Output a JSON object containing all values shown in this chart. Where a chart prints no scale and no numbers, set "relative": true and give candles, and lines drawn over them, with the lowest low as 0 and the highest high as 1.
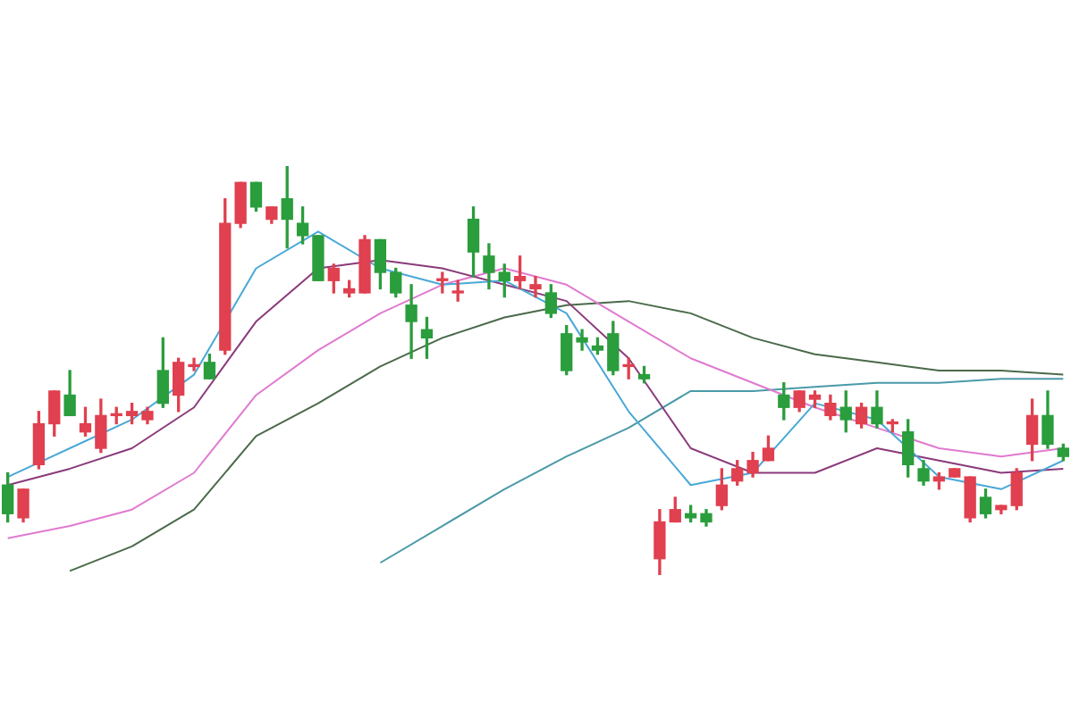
{
  "chart_data": {
    "type": "candlestick",
    "relative": true,
    "categories": [
      null,
      null,
      null,
      null,
      null,
      null,
      null,
      null,
      null,
      null,
      null,
      null,
      null,
      null,
      null,
      null,
      null,
      null,
      null,
      null,
      null,
      null,
      null,
      null,
      null,
      null,
      null,
      null,
      null,
      null,
      null,
      null,
      null,
      null,
      null,
      null,
      null,
      null,
      null,
      null,
      null,
      null,
      null,
      null,
      null,
      null,
      null,
      null,
      null,
      null,
      null,
      null,
      null,
      null,
      null,
      null,
      null,
      null,
      null,
      null,
      null,
      null,
      null,
      null,
      null,
      null,
      null,
      null,
      null
    ],
    "ohlc": [
      [
        0.22,
        0.25,
        0.13,
        0.15
      ],
      [
        0.14,
        0.21,
        0.13,
        0.21
      ],
      [
        0.27,
        0.4,
        0.26,
        0.37
      ],
      [
        0.37,
        0.45,
        0.34,
        0.45
      ],
      [
        0.44,
        0.5,
        0.39,
        0.39
      ],
      [
        0.35,
        0.41,
        0.34,
        0.37
      ],
      [
        0.31,
        0.43,
        0.3,
        0.39
      ],
      [
        0.39,
        0.41,
        0.37,
        0.39
      ],
      [
        0.39,
        0.42,
        0.37,
        0.4
      ],
      [
        0.38,
        0.41,
        0.37,
        0.4
      ],
      [
        0.5,
        0.58,
        0.41,
        0.42
      ],
      [
        0.44,
        0.53,
        0.4,
        0.52
      ],
      [
        0.51,
        0.53,
        0.5,
        0.51
      ],
      [
        0.52,
        0.54,
        0.48,
        0.48
      ],
      [
        0.55,
        0.92,
        0.54,
        0.86
      ],
      [
        0.86,
        0.96,
        0.85,
        0.96
      ],
      [
        0.96,
        0.96,
        0.89,
        0.9
      ],
      [
        0.87,
        0.9,
        0.86,
        0.9
      ],
      [
        0.92,
        1,
        0.8,
        0.87
      ],
      [
        0.86,
        0.9,
        0.81,
        0.83
      ],
      [
        0.83,
        0.83,
        0.72,
        0.72
      ],
      [
        0.72,
        0.76,
        0.69,
        0.75
      ],
      [
        0.69,
        0.72,
        0.68,
        0.7
      ],
      [
        0.69,
        0.83,
        0.69,
        0.82
      ],
      [
        0.82,
        0.82,
        0.7,
        0.74
      ],
      [
        0.74,
        0.75,
        0.68,
        0.69
      ],
      [
        0.66,
        0.71,
        0.53,
        0.62
      ],
      [
        0.6,
        0.63,
        0.53,
        0.58
      ],
      [
        0.72,
        0.74,
        0.69,
        0.72
      ],
      [
        0.69,
        0.72,
        0.67,
        0.69
      ],
      [
        0.87,
        0.9,
        0.73,
        0.79
      ],
      [
        0.78,
        0.81,
        0.7,
        0.74
      ],
      [
        0.74,
        0.76,
        0.68,
        0.72
      ],
      [
        0.72,
        0.78,
        0.7,
        0.73
      ],
      [
        0.7,
        0.73,
        0.68,
        0.71
      ],
      [
        0.69,
        0.71,
        0.63,
        0.64
      ],
      [
        0.59,
        0.61,
        0.49,
        0.5
      ],
      [
        0.58,
        0.6,
        0.55,
        0.57
      ],
      [
        0.56,
        0.58,
        0.54,
        0.55
      ],
      [
        0.59,
        0.62,
        0.49,
        0.5
      ],
      [
        0.51,
        0.53,
        0.48,
        0.51
      ],
      [
        0.49,
        0.51,
        0.47,
        0.48
      ],
      [
        0.04,
        0.16,
        0,
        0.13
      ],
      [
        0.13,
        0.19,
        0.13,
        0.16
      ],
      [
        0.15,
        0.17,
        0.13,
        0.14
      ],
      [
        0.15,
        0.16,
        0.12,
        0.13
      ],
      [
        0.17,
        0.26,
        0.16,
        0.22
      ],
      [
        0.23,
        0.28,
        0.22,
        0.26
      ],
      [
        0.25,
        0.3,
        0.24,
        0.28
      ],
      [
        0.28,
        0.34,
        0.28,
        0.31
      ],
      [
        0.44,
        0.47,
        0.38,
        0.41
      ],
      [
        0.41,
        0.45,
        0.4,
        0.45
      ],
      [
        0.43,
        0.45,
        0.41,
        0.44
      ],
      [
        0.39,
        0.44,
        0.38,
        0.42
      ],
      [
        0.41,
        0.45,
        0.35,
        0.38
      ],
      [
        0.37,
        0.42,
        0.36,
        0.41
      ],
      [
        0.41,
        0.45,
        0.36,
        0.37
      ],
      [
        0.37,
        0.38,
        0.35,
        0.37
      ],
      [
        0.35,
        0.38,
        0.24,
        0.27
      ],
      [
        0.26,
        0.28,
        0.22,
        0.23
      ],
      [
        0.23,
        0.25,
        0.21,
        0.24
      ],
      [
        0.24,
        0.26,
        0.24,
        0.26
      ],
      [
        0.14,
        0.24,
        0.13,
        0.24
      ],
      [
        0.19,
        0.21,
        0.14,
        0.15
      ],
      [
        0.16,
        0.17,
        0.15,
        0.17
      ],
      [
        0.17,
        0.26,
        0.16,
        0.25
      ],
      [
        0.32,
        0.43,
        0.28,
        0.39
      ],
      [
        0.39,
        0.45,
        0.31,
        0.32
      ],
      [
        0.31,
        0.32,
        0.28,
        0.29
      ]
    ],
    "colors": [
      "#2a9d3c",
      "#e0404f",
      "#e0404f",
      "#e0404f",
      "#2a9d3c",
      "#e0404f",
      "#e0404f",
      "#e0404f",
      "#e0404f",
      "#e0404f",
      "#2a9d3c",
      "#e0404f",
      "#e0404f",
      "#2a9d3c",
      "#e0404f",
      "#e0404f",
      "#2a9d3c",
      "#e0404f",
      "#2a9d3c",
      "#2a9d3c",
      "#2a9d3c",
      "#e0404f",
      "#e0404f",
      "#e0404f",
      "#2a9d3c",
      "#2a9d3c",
      "#2a9d3c",
      "#2a9d3c",
      "#e0404f",
      "#e0404f",
      "#2a9d3c",
      "#2a9d3c",
      "#2a9d3c",
      "#e0404f",
      "#e0404f",
      "#2a9d3c",
      "#2a9d3c",
      "#2a9d3c",
      "#2a9d3c",
      "#2a9d3c",
      "#e0404f",
      "#2a9d3c",
      "#e0404f",
      "#e0404f",
      "#2a9d3c",
      "#2a9d3c",
      "#e0404f",
      "#e0404f",
      "#e0404f",
      "#e0404f",
      "#2a9d3c",
      "#e0404f",
      "#e0404f",
      "#e0404f",
      "#2a9d3c",
      "#e0404f",
      "#2a9d3c",
      "#e0404f",
      "#2a9d3c",
      "#2a9d3c",
      "#e0404f",
      "#e0404f",
      "#e0404f",
      "#2a9d3c",
      "#e0404f",
      "#e0404f",
      "#e0404f",
      "#2a9d3c",
      "#2a9d3c"
    ],
    "series": [
      {
        "type": "line",
        "color": "#4aa8d8",
        "values": [
          0.24,
          null,
          null,
          null,
          0.31,
          null,
          null,
          null,
          0.38,
          null,
          null,
          null,
          0.49,
          null,
          null,
          null,
          0.75,
          null,
          null,
          null,
          0.84,
          null,
          null,
          null,
          0.75,
          null,
          null,
          null,
          0.71,
          null,
          null,
          null,
          0.72,
          null,
          null,
          null,
          0.64,
          null,
          null,
          null,
          0.4,
          null,
          null,
          null,
          0.22,
          null,
          null,
          null,
          0.25,
          null,
          null,
          null,
          0.42,
          null,
          null,
          null,
          0.38,
          null,
          null,
          null,
          0.24,
          null,
          null,
          null,
          0.21,
          null,
          null,
          null,
          0.28
        ]
      },
      {
        "type": "line",
        "color": "#8a3a7a",
        "values": [
          0.22,
          null,
          null,
          null,
          0.26,
          null,
          null,
          null,
          0.31,
          null,
          null,
          null,
          0.41,
          null,
          null,
          null,
          0.62,
          null,
          null,
          null,
          0.75,
          null,
          null,
          null,
          0.77,
          null,
          null,
          null,
          0.75,
          null,
          null,
          null,
          0.71,
          null,
          null,
          null,
          0.67,
          null,
          null,
          null,
          0.53,
          null,
          null,
          null,
          0.31,
          null,
          null,
          null,
          0.25,
          null,
          null,
          null,
          0.25,
          null,
          null,
          null,
          0.31,
          null,
          null,
          null,
          0.28,
          null,
          null,
          null,
          0.25,
          null,
          null,
          null,
          0.26
        ]
      },
      {
        "type": "line",
        "color": "#e07ad0",
        "values": [
          0.09,
          null,
          null,
          null,
          0.12,
          null,
          null,
          null,
          0.16,
          null,
          null,
          null,
          0.25,
          null,
          null,
          null,
          0.44,
          null,
          null,
          null,
          0.55,
          null,
          null,
          null,
          0.64,
          null,
          null,
          null,
          0.71,
          null,
          null,
          null,
          0.75,
          null,
          null,
          null,
          0.71,
          null,
          null,
          null,
          0.62,
          null,
          null,
          null,
          0.53,
          null,
          null,
          null,
          0.47,
          null,
          null,
          null,
          0.41,
          null,
          null,
          null,
          0.36,
          null,
          null,
          null,
          0.31,
          null,
          null,
          null,
          0.29,
          null,
          null,
          null,
          0.31
        ]
      },
      {
        "type": "line",
        "color": "#4a6a4a",
        "values": [
          null,
          null,
          null,
          null,
          0.01,
          null,
          null,
          null,
          0.07,
          null,
          null,
          null,
          0.16,
          null,
          null,
          null,
          0.34,
          null,
          null,
          null,
          0.42,
          null,
          null,
          null,
          0.51,
          null,
          null,
          null,
          0.58,
          null,
          null,
          null,
          0.63,
          null,
          null,
          null,
          0.66,
          null,
          null,
          null,
          0.67,
          null,
          null,
          null,
          0.64,
          null,
          null,
          null,
          0.58,
          null,
          null,
          null,
          0.54,
          null,
          null,
          null,
          0.52,
          null,
          null,
          null,
          0.5,
          null,
          null,
          null,
          0.5,
          null,
          null,
          null,
          0.49
        ]
      },
      {
        "type": "line",
        "color": "#4a9aa8",
        "values": [
          null,
          null,
          null,
          null,
          null,
          null,
          null,
          null,
          null,
          null,
          null,
          null,
          null,
          null,
          null,
          null,
          null,
          null,
          null,
          null,
          null,
          null,
          null,
          null,
          0.03,
          null,
          null,
          null,
          0.12,
          null,
          null,
          null,
          0.21,
          null,
          null,
          null,
          0.29,
          null,
          null,
          null,
          0.36,
          null,
          null,
          null,
          0.45,
          null,
          null,
          null,
          0.45,
          null,
          null,
          null,
          0.46,
          null,
          null,
          null,
          0.47,
          null,
          null,
          null,
          0.47,
          null,
          null,
          null,
          0.48,
          null,
          null,
          null,
          0.48
        ]
      }
    ]
  }
}
